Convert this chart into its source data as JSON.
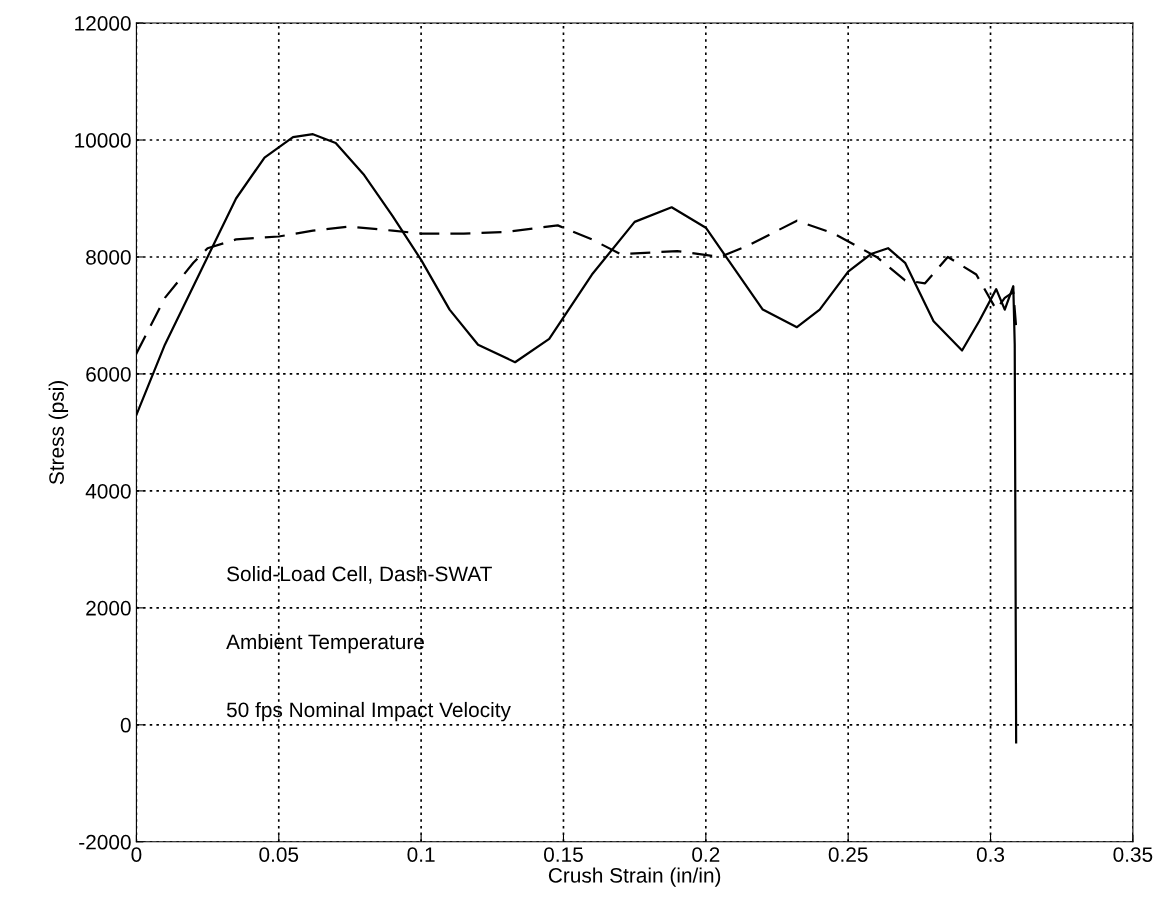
{
  "chart_data": {
    "type": "line",
    "xlabel": "Crush Strain (in/in)",
    "ylabel": "Stress (psi)",
    "xlim": [
      0,
      0.35
    ],
    "xticks": [
      0,
      0.05,
      0.1,
      0.15,
      0.2,
      0.25,
      0.3,
      0.35
    ],
    "ylim": [
      -2000,
      12000
    ],
    "yticks": [
      -2000,
      0,
      2000,
      4000,
      6000,
      8000,
      10000,
      12000
    ],
    "grid": true,
    "annotations": [
      "Solid-Load Cell, Dash-SWAT",
      "Ambient Temperature",
      "50 fps Nominal Impact Velocity"
    ],
    "series": [
      {
        "color": "#000000",
        "line_style": "solid",
        "x": [
          0,
          0.01,
          0.02,
          0.027,
          0.035,
          0.045,
          0.055,
          0.062,
          0.07,
          0.08,
          0.09,
          0.1,
          0.11,
          0.12,
          0.133,
          0.145,
          0.16,
          0.175,
          0.188,
          0.2,
          0.21,
          0.22,
          0.232,
          0.24,
          0.25,
          0.258,
          0.264,
          0.27,
          0.28,
          0.29,
          0.296,
          0.302,
          0.305,
          0.308,
          0.3085,
          0.309
        ],
        "values": [
          5300,
          6500,
          7500,
          8200,
          9000,
          9700,
          10050,
          10100,
          9950,
          9400,
          8700,
          7950,
          7100,
          6500,
          6200,
          6600,
          7700,
          8600,
          8850,
          8500,
          7800,
          7100,
          6800,
          7100,
          7750,
          8050,
          8150,
          7900,
          6900,
          6400,
          6900,
          7450,
          7100,
          7500,
          6500,
          -300
        ]
      },
      {
        "color": "#000000",
        "line_style": "dashed",
        "x": [
          0,
          0.01,
          0.02,
          0.025,
          0.035,
          0.05,
          0.062,
          0.075,
          0.09,
          0.1,
          0.115,
          0.13,
          0.148,
          0.16,
          0.17,
          0.19,
          0.205,
          0.215,
          0.232,
          0.245,
          0.26,
          0.27,
          0.277,
          0.285,
          0.295,
          0.302,
          0.305,
          0.308,
          0.309
        ],
        "values": [
          6350,
          7300,
          7900,
          8150,
          8300,
          8350,
          8450,
          8520,
          8450,
          8400,
          8400,
          8430,
          8540,
          8300,
          8050,
          8100,
          8000,
          8200,
          8620,
          8400,
          8000,
          7600,
          7550,
          8000,
          7700,
          7100,
          7300,
          7400,
          6800
        ]
      }
    ]
  }
}
